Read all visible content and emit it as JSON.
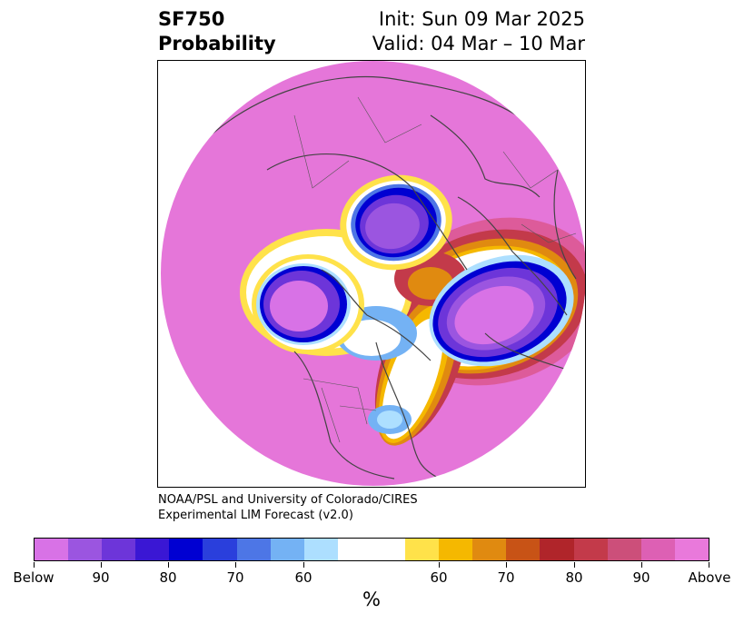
{
  "title": {
    "left_line1": "SF750",
    "left_line2": "Probability",
    "right_line1": "Init: Sun 09 Mar 2025",
    "right_line2": "Valid: 04 Mar – 10 Mar"
  },
  "credit": {
    "line1": "NOAA/PSL and University of Colorado/CIRES",
    "line2": "Experimental LIM Forecast (v2.0)"
  },
  "colorbar": {
    "colors": [
      "#d872e6",
      "#9b55e0",
      "#6d35d9",
      "#3a17d4",
      "#0000d2",
      "#2a3fdc",
      "#4d76e6",
      "#74b2f4",
      "#addfff",
      "#ffffff",
      "#ffffff",
      "#ffe24a",
      "#f5b800",
      "#e08a10",
      "#c85316",
      "#b0252a",
      "#c33a4a",
      "#cc4f7a",
      "#dd60b4",
      "#e979db"
    ],
    "ticks": [
      "Below",
      "90",
      "80",
      "70",
      "60",
      "60",
      "70",
      "80",
      "90",
      "Above"
    ],
    "unit": "%"
  },
  "map": {
    "background_color": "#e576d9",
    "below_colors": [
      "#e576d9",
      "#9b55e0",
      "#6d35d9",
      "#3a17d4",
      "#0000d2",
      "#4d76e6",
      "#addfff"
    ],
    "above_colors": [
      "#dd5b9a",
      "#c33a4a",
      "#b0252a",
      "#e08a10",
      "#f5b800",
      "#ffe24a"
    ]
  }
}
